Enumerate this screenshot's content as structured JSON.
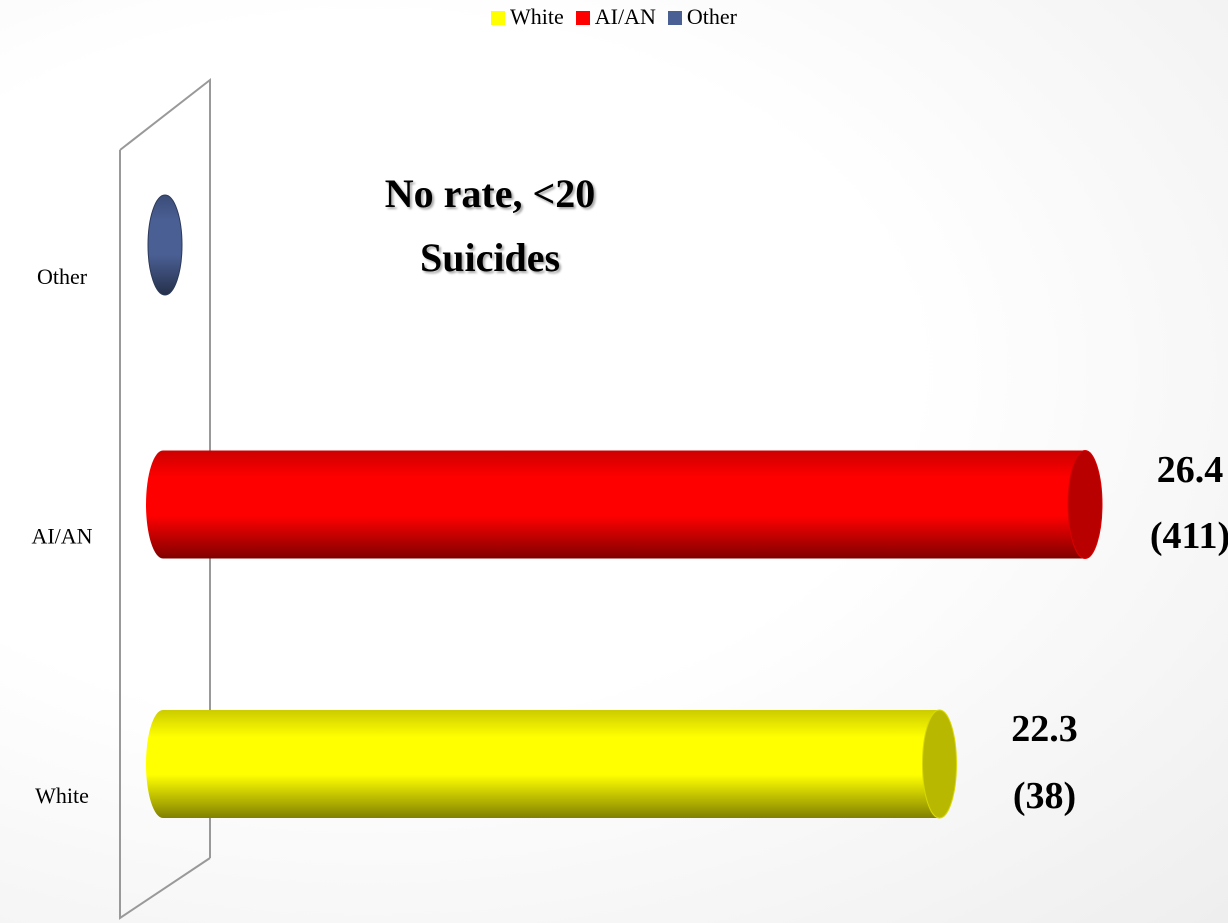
{
  "chart_data": {
    "type": "bar",
    "orientation": "horizontal",
    "categories": [
      "White",
      "AI/AN",
      "Other"
    ],
    "values": [
      22.3,
      26.4,
      null
    ],
    "value_labels": [
      "22.3 (38)",
      "26.4 (411)",
      null
    ],
    "colors": [
      "#ffff00",
      "#ff0000",
      "#4a5f94"
    ],
    "annotation": "No rate, <20 Suicides",
    "legend": "top"
  }
}
